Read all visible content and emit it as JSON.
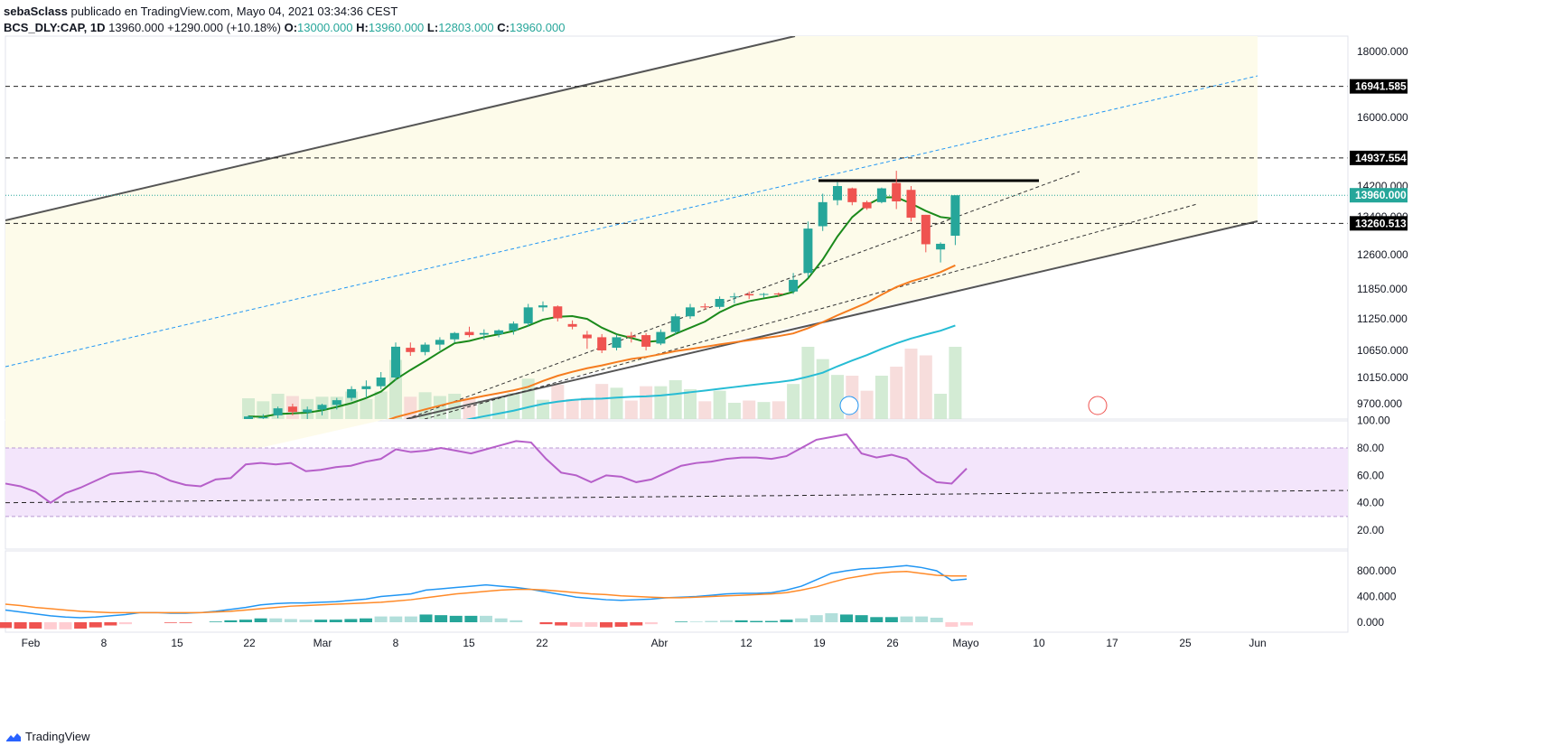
{
  "header": {
    "line1_author": "sebaSclass",
    "line1_text": "publicado en TradingView.com, Mayo 04, 2021 03:34:36 CEST",
    "symbol": "BCS_DLY:CAP, 1D",
    "last": "13960.000",
    "change": "+1290.000 (+10.18%)",
    "o_label": "O:",
    "o_val": "13000.000",
    "h_label": "H:",
    "h_val": "13960.000",
    "l_label": "L:",
    "l_val": "12803.000",
    "c_label": "C:",
    "c_val": "13960.000"
  },
  "footer": {
    "brand": "TradingView"
  },
  "colors": {
    "up": "#26a69a",
    "down": "#ef5350",
    "ma_fast": "#1b8a1b",
    "ma_mid": "#f57c1f",
    "ma_slow": "#26bcd4",
    "rsi": "#b65fc9",
    "macd": "#2196f3",
    "signal": "#ff8a28",
    "channel_fill": "#fdfbea"
  },
  "chart_data": [
    {
      "type": "candlestick",
      "title": "BCS_DLY:CAP, 1D",
      "ylim": [
        9500,
        18500
      ],
      "y_ticks": [
        "18000.000",
        "16000.000",
        "14200.000",
        "13400.000",
        "12600.000",
        "11850.000",
        "11250.000",
        "10650.000",
        "10150.000",
        "9700.000"
      ],
      "x_ticks": [
        "Feb",
        "8",
        "15",
        "22",
        "Mar",
        "8",
        "15",
        "22",
        "Abr",
        "12",
        "19",
        "26",
        "Mayo",
        "10",
        "17",
        "25",
        "Jun"
      ],
      "price_labels": [
        "16941.585",
        "14937.554",
        "13960.000",
        "13260.513"
      ],
      "candles": [
        {
          "o": 9420,
          "h": 9500,
          "l": 9300,
          "c": 9480
        },
        {
          "o": 9450,
          "h": 9520,
          "l": 9350,
          "c": 9470
        },
        {
          "o": 9500,
          "h": 9650,
          "l": 9450,
          "c": 9620
        },
        {
          "o": 9650,
          "h": 9700,
          "l": 9500,
          "c": 9560
        },
        {
          "o": 9550,
          "h": 9650,
          "l": 9400,
          "c": 9600
        },
        {
          "o": 9600,
          "h": 9700,
          "l": 9500,
          "c": 9680
        },
        {
          "o": 9680,
          "h": 9800,
          "l": 9600,
          "c": 9760
        },
        {
          "o": 9800,
          "h": 10000,
          "l": 9750,
          "c": 9950
        },
        {
          "o": 9950,
          "h": 10100,
          "l": 9800,
          "c": 10000
        },
        {
          "o": 10000,
          "h": 10250,
          "l": 9950,
          "c": 10150
        },
        {
          "o": 10150,
          "h": 10800,
          "l": 10100,
          "c": 10720
        },
        {
          "o": 10700,
          "h": 10800,
          "l": 10550,
          "c": 10620
        },
        {
          "o": 10620,
          "h": 10800,
          "l": 10560,
          "c": 10760
        },
        {
          "o": 10760,
          "h": 10900,
          "l": 10650,
          "c": 10850
        },
        {
          "o": 10860,
          "h": 11000,
          "l": 10800,
          "c": 10980
        },
        {
          "o": 11000,
          "h": 11100,
          "l": 10900,
          "c": 10940
        },
        {
          "o": 10950,
          "h": 11050,
          "l": 10850,
          "c": 10980
        },
        {
          "o": 10960,
          "h": 11050,
          "l": 10900,
          "c": 11030
        },
        {
          "o": 11030,
          "h": 11200,
          "l": 10950,
          "c": 11160
        },
        {
          "o": 11160,
          "h": 11550,
          "l": 11100,
          "c": 11480
        },
        {
          "o": 11480,
          "h": 11600,
          "l": 11400,
          "c": 11520
        },
        {
          "o": 11500,
          "h": 11520,
          "l": 11200,
          "c": 11260
        },
        {
          "o": 11150,
          "h": 11220,
          "l": 11050,
          "c": 11100
        },
        {
          "o": 10950,
          "h": 11020,
          "l": 10680,
          "c": 10880
        },
        {
          "o": 10900,
          "h": 10960,
          "l": 10600,
          "c": 10650
        },
        {
          "o": 10700,
          "h": 10950,
          "l": 10650,
          "c": 10900
        },
        {
          "o": 10930,
          "h": 11000,
          "l": 10800,
          "c": 10900
        },
        {
          "o": 10940,
          "h": 10980,
          "l": 10650,
          "c": 10720
        },
        {
          "o": 10780,
          "h": 11050,
          "l": 10750,
          "c": 11000
        },
        {
          "o": 11000,
          "h": 11350,
          "l": 10950,
          "c": 11300
        },
        {
          "o": 11300,
          "h": 11550,
          "l": 11250,
          "c": 11480
        },
        {
          "o": 11500,
          "h": 11560,
          "l": 11430,
          "c": 11480
        },
        {
          "o": 11490,
          "h": 11700,
          "l": 11450,
          "c": 11650
        },
        {
          "o": 11700,
          "h": 11770,
          "l": 11560,
          "c": 11700
        },
        {
          "o": 11750,
          "h": 11800,
          "l": 11650,
          "c": 11720
        },
        {
          "o": 11740,
          "h": 11770,
          "l": 11680,
          "c": 11750
        },
        {
          "o": 11760,
          "h": 11780,
          "l": 11700,
          "c": 11740
        },
        {
          "o": 11800,
          "h": 12200,
          "l": 11750,
          "c": 12050
        },
        {
          "o": 12200,
          "h": 13300,
          "l": 12100,
          "c": 13150
        },
        {
          "o": 13200,
          "h": 14000,
          "l": 13100,
          "c": 13780
        },
        {
          "o": 13830,
          "h": 14300,
          "l": 13700,
          "c": 14200
        },
        {
          "o": 14140,
          "h": 14160,
          "l": 13700,
          "c": 13780
        },
        {
          "o": 13780,
          "h": 13820,
          "l": 13580,
          "c": 13620
        },
        {
          "o": 13780,
          "h": 14160,
          "l": 13750,
          "c": 14140
        },
        {
          "o": 14280,
          "h": 14600,
          "l": 13600,
          "c": 13800
        },
        {
          "o": 14100,
          "h": 14200,
          "l": 13300,
          "c": 13380
        },
        {
          "o": 13450,
          "h": 13450,
          "l": 12650,
          "c": 12820
        },
        {
          "o": 12710,
          "h": 12860,
          "l": 12430,
          "c": 12830
        },
        {
          "o": 13000,
          "h": 13960,
          "l": 12803,
          "c": 13960
        }
      ]
    },
    {
      "type": "line",
      "title": "RSI",
      "ylim": [
        0,
        100
      ],
      "y_ticks": [
        "100.00",
        "80.00",
        "60.00",
        "40.00",
        "20.00"
      ],
      "bands": [
        30,
        80
      ],
      "values": [
        54,
        52,
        48,
        40,
        47,
        51,
        56,
        61,
        62,
        63,
        61,
        56,
        53,
        52,
        57,
        58,
        68,
        69,
        68,
        69,
        63,
        64,
        66,
        67,
        70,
        72,
        79,
        77,
        78,
        80,
        78,
        76,
        79,
        82,
        85,
        84,
        72,
        62,
        60,
        55,
        60,
        59,
        55,
        57,
        62,
        67,
        69,
        70,
        72,
        73,
        73,
        72,
        74,
        80,
        86,
        88,
        90,
        76,
        73,
        75,
        72,
        62,
        55,
        54,
        65
      ]
    },
    {
      "type": "line",
      "title": "MACD",
      "ylim": [
        -60,
        1000
      ],
      "y_ticks": [
        "800.000",
        "400.000",
        "0.000"
      ],
      "series": [
        {
          "values": [
            190,
            160,
            130,
            100,
            80,
            70,
            80,
            100,
            120,
            150,
            150,
            140,
            140,
            150,
            170,
            200,
            230,
            270,
            290,
            300,
            300,
            310,
            320,
            340,
            360,
            400,
            420,
            440,
            500,
            520,
            540,
            560,
            580,
            560,
            540,
            510,
            470,
            430,
            390,
            370,
            350,
            340,
            350,
            360,
            380,
            390,
            400,
            420,
            440,
            450,
            450,
            460,
            500,
            560,
            660,
            760,
            800,
            830,
            840,
            860,
            880,
            850,
            800,
            650,
            670
          ]
        },
        {
          "values": [
            280,
            260,
            230,
            210,
            190,
            170,
            160,
            150,
            150,
            150,
            150,
            150,
            150,
            150,
            160,
            170,
            190,
            210,
            230,
            250,
            260,
            270,
            280,
            290,
            300,
            310,
            330,
            350,
            380,
            410,
            440,
            460,
            480,
            500,
            510,
            510,
            500,
            480,
            460,
            440,
            430,
            410,
            400,
            390,
            380,
            380,
            390,
            400,
            410,
            420,
            430,
            440,
            460,
            500,
            550,
            620,
            680,
            720,
            760,
            780,
            790,
            760,
            730,
            720,
            720
          ]
        }
      ]
    }
  ]
}
